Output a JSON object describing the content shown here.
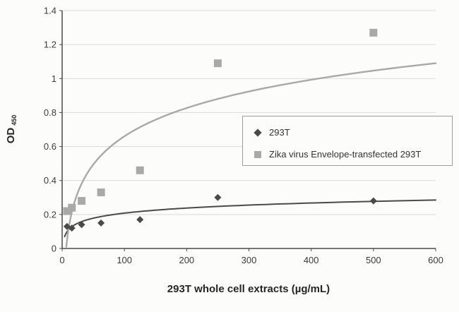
{
  "chart_data": {
    "type": "scatter",
    "title": "",
    "xlabel": "293T whole cell extracts (µg/mL)",
    "ylabel": "OD 450",
    "ylabel_main": "OD",
    "ylabel_sub": "450",
    "xlim": [
      0,
      600
    ],
    "ylim": [
      0,
      1.4
    ],
    "xticks": [
      "0",
      "100",
      "200",
      "300",
      "400",
      "500",
      "600"
    ],
    "yticks": [
      "0",
      "0.2",
      "0.4",
      "0.6",
      "0.8",
      "1",
      "1.2",
      "1.4"
    ],
    "grid": "horizontal",
    "gridline_color": "#dadad8",
    "axis_color": "#4a4a4a",
    "text_color": "#3b3b3b",
    "legend_position": "middle-right",
    "legend_border_color": "#9b9b9b",
    "series": [
      {
        "name": "293T",
        "marker": "diamond",
        "color": "#4a4a4a",
        "points": [
          [
            7.8,
            0.13
          ],
          [
            15.6,
            0.12
          ],
          [
            31.3,
            0.14
          ],
          [
            62.5,
            0.15
          ],
          [
            125,
            0.17
          ],
          [
            250,
            0.3
          ],
          [
            500,
            0.28
          ]
        ],
        "trend": {
          "type": "log",
          "a": 0.043,
          "b": 0.01
        }
      },
      {
        "name": "Zika virus Envelope-transfected 293T",
        "marker": "square",
        "color": "#a9a9a9",
        "points": [
          [
            7.8,
            0.22
          ],
          [
            15.6,
            0.24
          ],
          [
            31.3,
            0.28
          ],
          [
            62.5,
            0.33
          ],
          [
            125,
            0.46
          ],
          [
            250,
            1.09
          ],
          [
            500,
            1.27
          ]
        ],
        "trend": {
          "type": "log",
          "a": 0.24,
          "b": -0.445
        }
      }
    ]
  }
}
